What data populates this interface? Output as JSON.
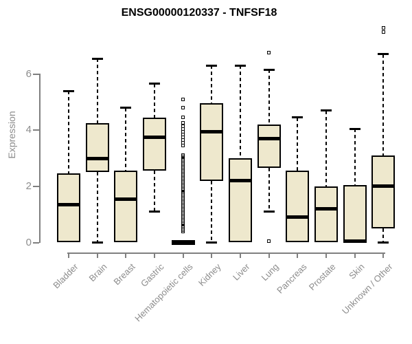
{
  "chart_data": {
    "type": "boxplot",
    "title": "ENSG00000120337 - TNFSF18",
    "xlabel": "",
    "ylabel": "Expression",
    "yticks": [
      0,
      2,
      4,
      6
    ],
    "ylim": [
      0,
      7.8
    ],
    "grid": false,
    "legend": "none",
    "categories": [
      "Bladder",
      "Brain",
      "Breast",
      "Gastric",
      "Hematopoietic cells",
      "Kidney",
      "Liver",
      "Lung",
      "Pancreas",
      "Prostate",
      "Skin",
      "Unknown / Other"
    ],
    "boxes": [
      {
        "category": "Bladder",
        "low": 0,
        "q1": 0,
        "median": 1.35,
        "q3": 2.45,
        "high": 5.4,
        "outliers": []
      },
      {
        "category": "Brain",
        "low": 0,
        "q1": 2.5,
        "median": 3.0,
        "q3": 4.25,
        "high": 6.55,
        "outliers": []
      },
      {
        "category": "Breast",
        "low": 0,
        "q1": 0,
        "median": 1.55,
        "q3": 2.55,
        "high": 4.8,
        "outliers": []
      },
      {
        "category": "Gastric",
        "low": 1.1,
        "q1": 2.55,
        "median": 3.75,
        "q3": 4.45,
        "high": 5.65,
        "outliers": []
      },
      {
        "category": "Hematopoietic cells",
        "low": 0,
        "q1": 0,
        "median": 0,
        "q3": 0,
        "high": 0,
        "outliers": [
          0.4,
          0.45,
          0.5,
          0.55,
          0.6,
          0.65,
          0.7,
          0.75,
          0.8,
          0.85,
          0.9,
          0.95,
          1.0,
          1.05,
          1.1,
          1.15,
          1.2,
          1.25,
          1.3,
          1.35,
          1.4,
          1.45,
          1.5,
          1.55,
          1.6,
          1.65,
          1.7,
          1.75,
          1.8,
          1.85,
          1.9,
          1.95,
          2.0,
          2.05,
          2.1,
          2.15,
          2.2,
          2.25,
          2.3,
          2.35,
          2.4,
          2.45,
          2.5,
          2.55,
          2.6,
          2.65,
          2.7,
          2.75,
          2.8,
          2.85,
          2.9,
          2.95,
          3.0,
          3.05,
          3.1,
          3.45,
          3.55,
          3.65,
          3.75,
          3.85,
          3.95,
          4.05,
          4.15,
          4.25,
          4.45,
          4.8,
          5.1
        ]
      },
      {
        "category": "Kidney",
        "low": 0,
        "q1": 2.2,
        "median": 3.95,
        "q3": 4.95,
        "high": 6.3,
        "outliers": []
      },
      {
        "category": "Liver",
        "low": 0,
        "q1": 0,
        "median": 2.2,
        "q3": 3.0,
        "high": 6.3,
        "outliers": []
      },
      {
        "category": "Lung",
        "low": 1.1,
        "q1": 2.65,
        "median": 3.7,
        "q3": 4.2,
        "high": 6.15,
        "outliers": [
          6.75,
          0.05
        ]
      },
      {
        "category": "Pancreas",
        "low": 0,
        "q1": 0,
        "median": 0.9,
        "q3": 2.55,
        "high": 4.45,
        "outliers": []
      },
      {
        "category": "Prostate",
        "low": 0,
        "q1": 0,
        "median": 1.2,
        "q3": 2.0,
        "high": 4.7,
        "outliers": []
      },
      {
        "category": "Skin",
        "low": 0,
        "q1": 0,
        "median": 0.05,
        "q3": 2.05,
        "high": 4.05,
        "outliers": []
      },
      {
        "category": "Unknown / Other",
        "low": 0,
        "q1": 0.5,
        "median": 2.0,
        "q3": 3.1,
        "high": 6.7,
        "outliers": [
          7.5,
          7.65
        ]
      }
    ],
    "colors": {
      "box_fill": "#EEE8CD",
      "box_border": "#000000",
      "median": "#000000",
      "whisker": "#000000",
      "axis": "#7F7F7F",
      "tick_label": "#8C8C8C",
      "title": "#000000",
      "background": "#FFFFFF"
    }
  }
}
